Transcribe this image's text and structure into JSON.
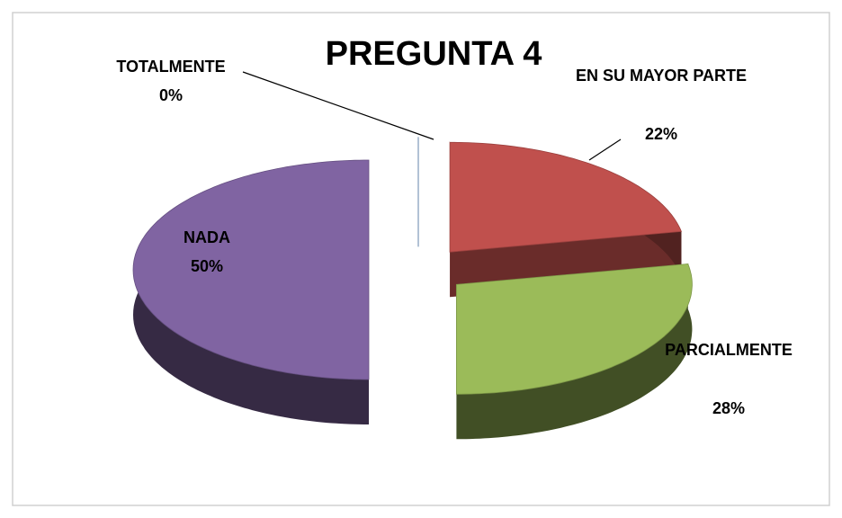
{
  "chart_data": {
    "type": "pie",
    "title": "PREGUNTA 4",
    "categories": [
      "TOTALMENTE",
      "EN SU MAYOR PARTE",
      "PARCIALMENTE",
      "NADA"
    ],
    "values": [
      0,
      22,
      28,
      50
    ],
    "value_labels": [
      "0%",
      "22%",
      "28%",
      "50%"
    ],
    "colors": [
      "#4f81bd",
      "#c0504d",
      "#9bbb59",
      "#8064a2"
    ]
  }
}
